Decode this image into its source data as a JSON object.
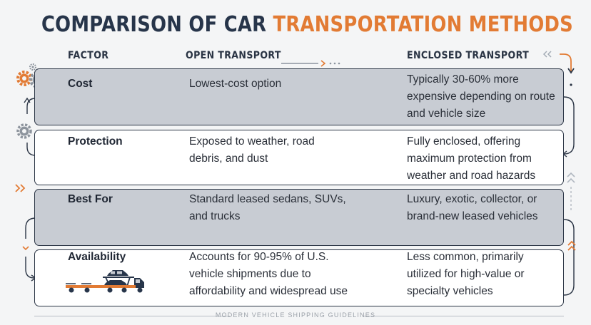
{
  "title": {
    "part1": "COMPARISON OF CAR",
    "part2": "TRANSPORTATION METHODS"
  },
  "headers": {
    "factor": "FACTOR",
    "open": "OPEN TRANSPORT",
    "enclosed": "ENCLOSED TRANSPORT"
  },
  "rows": [
    {
      "factor": "Cost",
      "open": "Lowest-cost option",
      "enclosed": "Typically 30-60% more expensive depending on route and vehicle size"
    },
    {
      "factor": "Protection",
      "open": "Exposed to weather, road debris, and dust",
      "enclosed": "Fully enclosed, offering maximum protection from weather and road hazards"
    },
    {
      "factor": "Best For",
      "open": "Standard leased sedans, SUVs, and trucks",
      "enclosed": "Luxury, exotic, collector, or brand-new leased vehicles"
    },
    {
      "factor": "Availability",
      "open": "Accounts for 90-95% of U.S. vehicle shipments due to affordability and widespread use",
      "enclosed": "Less common, primarily utilized for high-value or specialty vehicles"
    }
  ],
  "footer": "MODERN VEHICLE SHIPPING GUIDELINES",
  "colors": {
    "accent": "#e27b34",
    "navy": "#27354a",
    "shaded_row": "#c8ccd3",
    "background": "#f4f5f6"
  },
  "icons": [
    "gear-icon",
    "car-carrier-truck-icon",
    "chevron-right-icon",
    "chevron-up-icon",
    "chevron-left-icon",
    "flow-arrow-icon"
  ]
}
